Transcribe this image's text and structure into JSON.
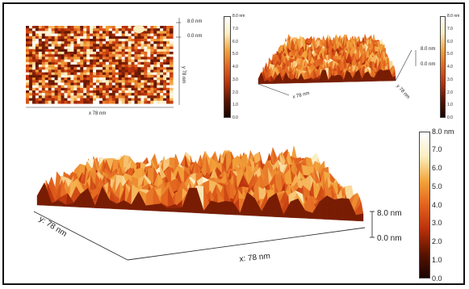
{
  "colors": {
    "dark": "#1a0400",
    "brown": "#5a1400",
    "red": "#b9300c",
    "orange": "#e2621e",
    "amber": "#f3a43c",
    "light": "#fbeec0",
    "white": "#ffffff"
  },
  "panel_tl": {
    "z_top": "8.0 nm",
    "z_mid": "0.0 nm",
    "y_axis": "y 78 nm",
    "x_axis": "x 78 nm",
    "colorbar_ticks": [
      "8.0 nm",
      "7.0",
      "6.0",
      "5.0",
      "4.0",
      "3.0",
      "2.0",
      "1.0",
      "0.0"
    ]
  },
  "panel_tr": {
    "z_top": "8.0 nm",
    "z_mid": "0.0 nm",
    "y_axis": "y 78 nm",
    "x_axis": "x 78 nm",
    "colorbar_ticks": [
      "8.0 nm",
      "7.0",
      "6.0",
      "5.0",
      "4.0",
      "3.0",
      "2.0",
      "1.0",
      "0.0"
    ]
  },
  "panel_bottom": {
    "z_top": "8.0 nm",
    "z_bottom": "0.0 nm",
    "y_axis": "y: 78 nm",
    "x_axis": "x: 78 nm",
    "colorbar_ticks": [
      "8.0 nm",
      "7.0",
      "6.0",
      "5.0",
      "4.0",
      "3.0",
      "2.0",
      "1.0",
      "0.0"
    ]
  }
}
